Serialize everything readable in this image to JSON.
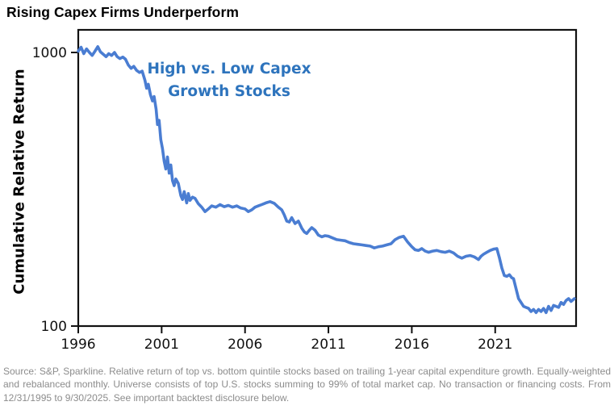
{
  "title": "Rising Capex Firms Underperform",
  "annotation": {
    "line1": "High vs. Low Capex",
    "line2": "Growth Stocks"
  },
  "source_note": "Source: S&P, Sparkline. Relative return of top vs. bottom quintile stocks based on trailing 1-year capital expenditure growth. Equally-weighted and rebalanced monthly. Universe consists of top U.S. stocks summing to 99% of total market cap. No transaction or financing costs. From 12/31/1995 to 9/30/2025. See important backtest disclosure below.",
  "colors": {
    "line": "#4a7dd2",
    "annotation": "#2e74bd",
    "axis": "#111111",
    "source_text": "#8c8c8c"
  },
  "chart_data": {
    "type": "line",
    "title": "Rising Capex Firms Underperform",
    "xlabel": "",
    "ylabel": "Cumulative Relative Return",
    "y_scale": "log",
    "ylim": [
      100,
      1210
    ],
    "xlim": [
      1996,
      2025.85
    ],
    "x_ticks": [
      1996,
      2001,
      2006,
      2011,
      2016,
      2021
    ],
    "y_ticks": [
      100,
      1000
    ],
    "grid": false,
    "legend": "none",
    "series": [
      {
        "name": "High vs. Low Capex Growth Stocks",
        "x": [
          1996.0,
          1996.17,
          1996.33,
          1996.5,
          1996.67,
          1996.83,
          1997.0,
          1997.17,
          1997.33,
          1997.5,
          1997.67,
          1997.83,
          1998.0,
          1998.17,
          1998.33,
          1998.5,
          1998.67,
          1998.83,
          1999.0,
          1999.17,
          1999.33,
          1999.5,
          1999.67,
          1999.83,
          2000.0,
          2000.1,
          2000.2,
          2000.33,
          2000.45,
          2000.55,
          2000.67,
          2000.75,
          2000.85,
          2000.95,
          2001.05,
          2001.15,
          2001.25,
          2001.35,
          2001.45,
          2001.55,
          2001.65,
          2001.75,
          2001.85,
          2002.0,
          2002.15,
          2002.25,
          2002.35,
          2002.5,
          2002.6,
          2002.7,
          2002.85,
          2003.0,
          2003.2,
          2003.4,
          2003.6,
          2003.8,
          2004.0,
          2004.25,
          2004.5,
          2004.75,
          2005.0,
          2005.25,
          2005.5,
          2005.75,
          2006.0,
          2006.2,
          2006.4,
          2006.6,
          2006.8,
          2007.0,
          2007.25,
          2007.5,
          2007.75,
          2008.0,
          2008.2,
          2008.35,
          2008.5,
          2008.65,
          2008.8,
          2009.0,
          2009.2,
          2009.4,
          2009.55,
          2009.7,
          2009.85,
          2010.0,
          2010.2,
          2010.4,
          2010.6,
          2010.8,
          2011.0,
          2011.25,
          2011.5,
          2011.75,
          2012.0,
          2012.25,
          2012.5,
          2012.75,
          2013.0,
          2013.25,
          2013.5,
          2013.75,
          2014.0,
          2014.25,
          2014.5,
          2014.75,
          2015.0,
          2015.25,
          2015.5,
          2015.75,
          2016.0,
          2016.2,
          2016.4,
          2016.6,
          2016.8,
          2017.0,
          2017.25,
          2017.5,
          2017.75,
          2018.0,
          2018.25,
          2018.5,
          2018.75,
          2019.0,
          2019.25,
          2019.5,
          2019.75,
          2020.0,
          2020.15,
          2020.3,
          2020.5,
          2020.7,
          2020.9,
          2021.1,
          2021.25,
          2021.4,
          2021.55,
          2021.7,
          2021.85,
          2022.0,
          2022.1,
          2022.25,
          2022.4,
          2022.55,
          2022.7,
          2022.85,
          2023.0,
          2023.15,
          2023.3,
          2023.45,
          2023.6,
          2023.75,
          2023.9,
          2024.05,
          2024.2,
          2024.35,
          2024.5,
          2024.65,
          2024.8,
          2024.95,
          2025.1,
          2025.25,
          2025.4,
          2025.55,
          2025.75
        ],
        "values": [
          1010,
          1045,
          990,
          1030,
          1000,
          975,
          1010,
          1050,
          1005,
          985,
          965,
          990,
          975,
          1000,
          965,
          950,
          962,
          945,
          900,
          875,
          890,
          860,
          845,
          855,
          790,
          740,
          765,
          700,
          665,
          690,
          620,
          545,
          565,
          480,
          445,
          400,
          375,
          415,
          362,
          388,
          340,
          326,
          345,
          332,
          300,
          290,
          310,
          282,
          305,
          288,
          296,
          293,
          280,
          272,
          262,
          268,
          275,
          272,
          278,
          273,
          276,
          272,
          275,
          270,
          268,
          262,
          266,
          272,
          275,
          278,
          282,
          285,
          281,
          272,
          266,
          255,
          242,
          240,
          249,
          237,
          242,
          228,
          221,
          218,
          224,
          229,
          224,
          215,
          212,
          214,
          213,
          210,
          207,
          206,
          205,
          202,
          200,
          199,
          198,
          197,
          196,
          193,
          195,
          196,
          198,
          200,
          207,
          211,
          213,
          203,
          195,
          190,
          189,
          192,
          188,
          186,
          188,
          189,
          187,
          186,
          188,
          185,
          180,
          177,
          180,
          181,
          179,
          175,
          180,
          183,
          186,
          189,
          191,
          192,
          178,
          163,
          153,
          152,
          154,
          150,
          149,
          137,
          126,
          122,
          118,
          117,
          116,
          113,
          115,
          112,
          115,
          113,
          116,
          112,
          118,
          114,
          119,
          118,
          117,
          122,
          120,
          124,
          126,
          123,
          126
        ]
      }
    ]
  }
}
